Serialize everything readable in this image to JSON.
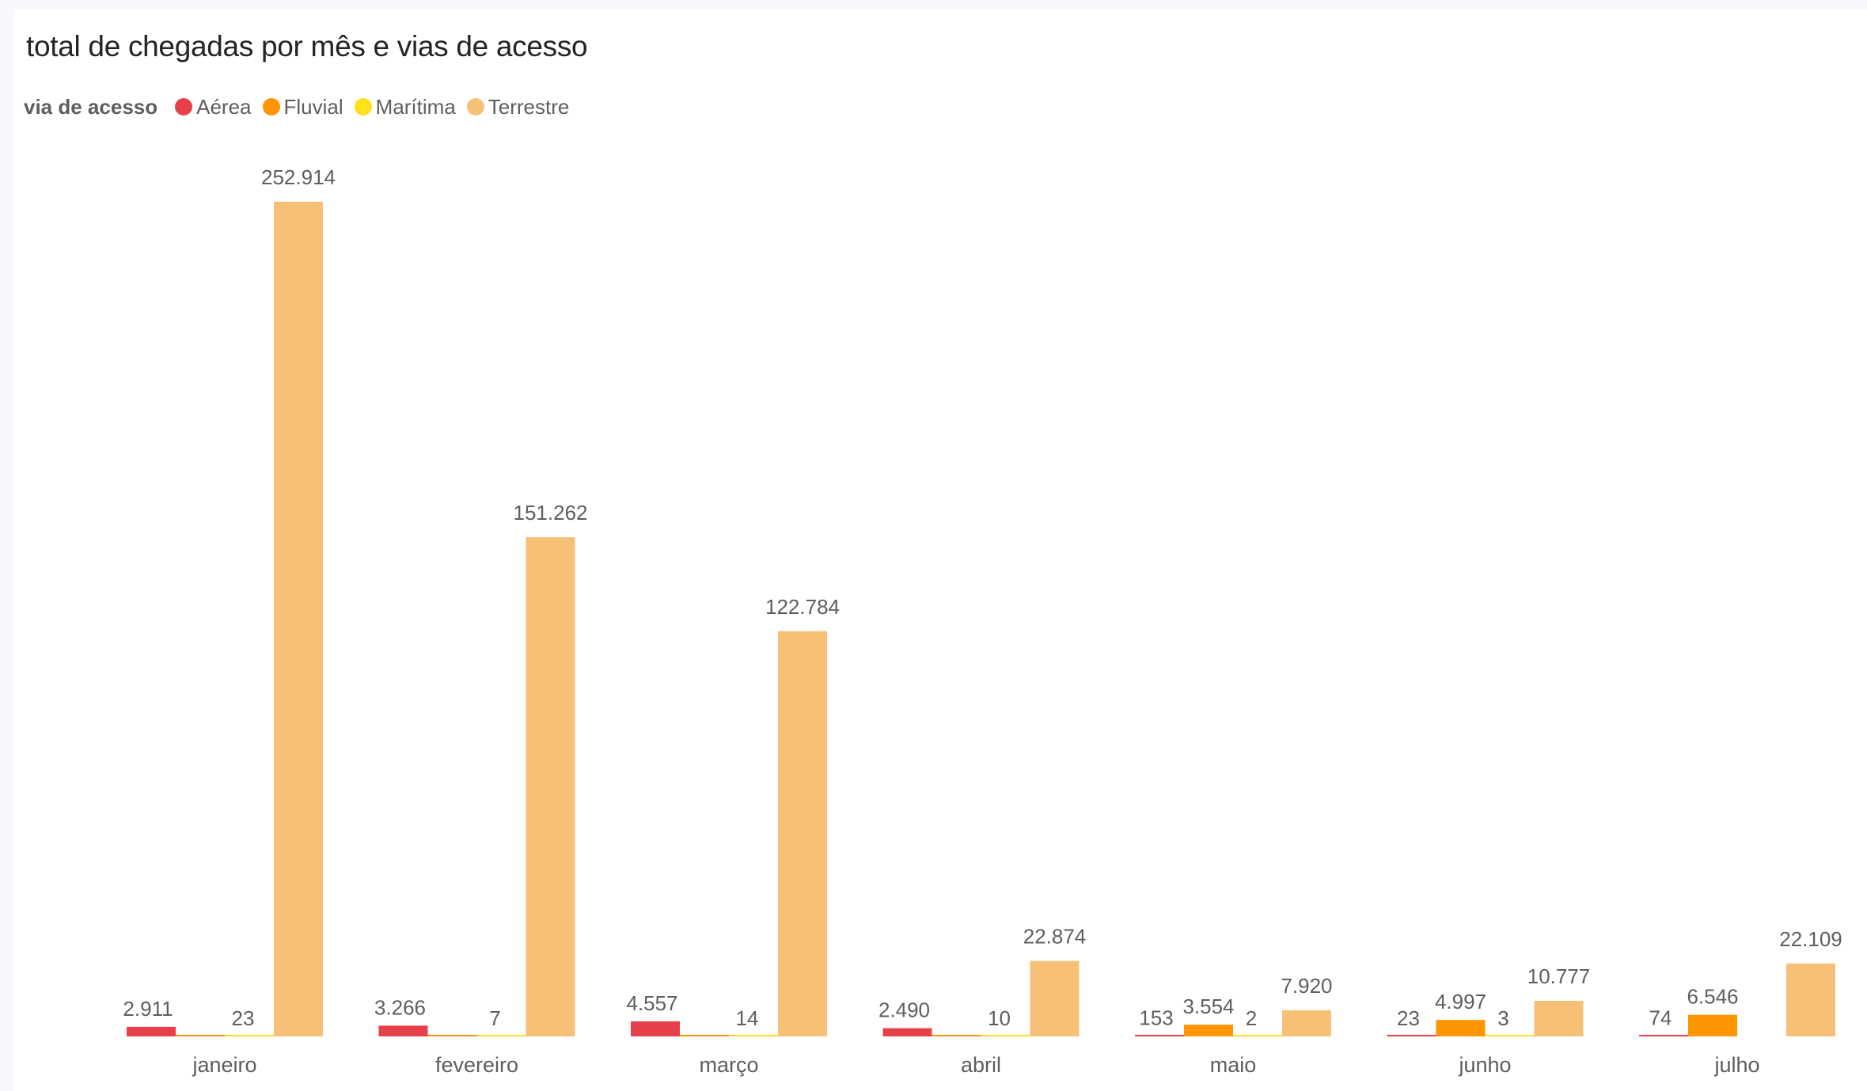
{
  "chart_data": {
    "type": "bar",
    "title": "total de chegadas por mês e vias de acesso",
    "legend_title": "via de acesso",
    "legend_position": "top-left",
    "categories": [
      "janeiro",
      "fevereiro",
      "março",
      "abril",
      "maio",
      "junho",
      "julho"
    ],
    "series": [
      {
        "name": "Aérea",
        "color": "#e8404a",
        "values": [
          2911,
          3266,
          4557,
          2490,
          153,
          23,
          74
        ],
        "labels": [
          "2.911",
          "3.266",
          "4.557",
          "2.490",
          "153",
          "23",
          "74"
        ]
      },
      {
        "name": "Fluvial",
        "color": "#ff9500",
        "values": [
          23,
          7,
          14,
          10,
          3554,
          4997,
          6546
        ],
        "labels": [
          "",
          "",
          "",
          "",
          "3.554",
          "4.997",
          "6.546"
        ]
      },
      {
        "name": "Marítima",
        "color": "#ffe01a",
        "values": [
          23,
          7,
          14,
          10,
          2,
          3,
          null
        ],
        "labels": [
          "23",
          "7",
          "14",
          "10",
          "2",
          "3",
          ""
        ]
      },
      {
        "name": "Terrestre",
        "color": "#f6c177",
        "values": [
          252914,
          151262,
          122784,
          22874,
          7920,
          10777,
          22109
        ],
        "labels": [
          "252.914",
          "151.262",
          "122.784",
          "22.874",
          "7.920",
          "10.777",
          "22.109"
        ]
      }
    ],
    "ylim": [
      0,
      252914
    ],
    "grid": false,
    "xlabel": "",
    "ylabel": ""
  }
}
